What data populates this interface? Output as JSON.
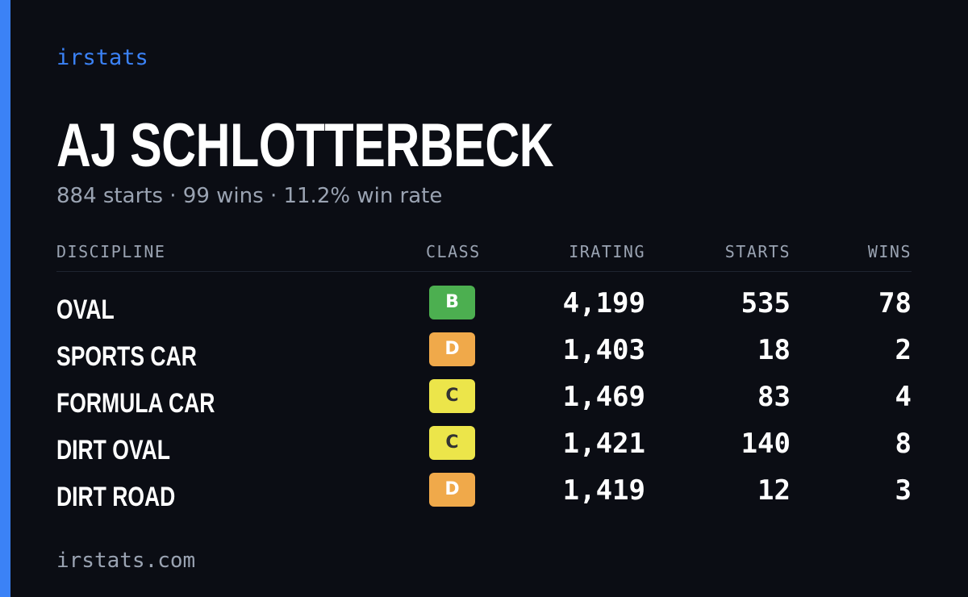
{
  "brand": "irstats",
  "driver": {
    "name": "AJ SCHLOTTERBECK",
    "starts_text": "884 starts",
    "wins_text": "99 wins",
    "win_rate_text": "11.2% win rate",
    "separator": "·"
  },
  "table": {
    "headers": {
      "discipline": "DISCIPLINE",
      "class": "CLASS",
      "irating": "IRATING",
      "starts": "STARTS",
      "wins": "WINS"
    },
    "rows": [
      {
        "discipline": "OVAL",
        "class": "B",
        "irating": "4,199",
        "starts": "535",
        "wins": "78"
      },
      {
        "discipline": "SPORTS CAR",
        "class": "D",
        "irating": "1,403",
        "starts": "18",
        "wins": "2"
      },
      {
        "discipline": "FORMULA CAR",
        "class": "C",
        "irating": "1,469",
        "starts": "83",
        "wins": "4"
      },
      {
        "discipline": "DIRT OVAL",
        "class": "C",
        "irating": "1,421",
        "starts": "140",
        "wins": "8"
      },
      {
        "discipline": "DIRT ROAD",
        "class": "D",
        "irating": "1,419",
        "starts": "12",
        "wins": "3"
      }
    ]
  },
  "footer": "irstats.com",
  "colors": {
    "background": "#0b0d14",
    "accent": "#3b82f6",
    "class_B": "#4caf50",
    "class_C": "#ece54a",
    "class_D": "#f0a94a"
  }
}
